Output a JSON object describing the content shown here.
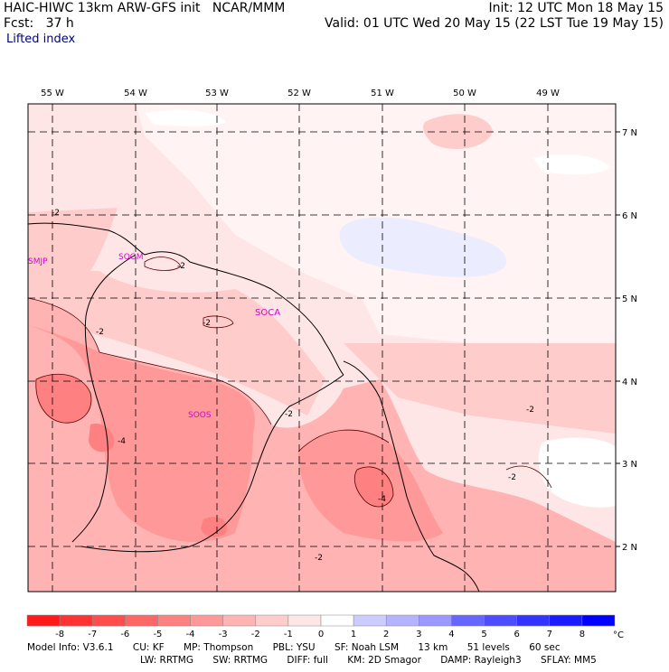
{
  "header": {
    "title": "HAIC-HIWC 13km ARW-GFS init",
    "org": "NCAR/MMM",
    "init": "Init: 12 UTC Mon 18 May 15",
    "fcst_label": "Fcst:",
    "fcst_value": "37 h",
    "valid": "Valid: 01 UTC Wed 20 May 15 (22 LST Tue 19 May 15)",
    "field": "Lifted index"
  },
  "map": {
    "lon_labels": [
      "55 W",
      "54 W",
      "53 W",
      "52 W",
      "51 W",
      "50 W",
      "49 W"
    ],
    "lat_labels": [
      "7 N",
      "6 N",
      "5 N",
      "4 N",
      "3 N",
      "2 N"
    ],
    "stations": [
      "SMJP",
      "SOGM",
      "SOCA",
      "SOOS"
    ],
    "contour_labels": [
      "-2",
      "-2",
      "-2",
      "-2",
      "-2",
      "-2",
      "-4",
      "-4",
      "-2",
      "-2"
    ]
  },
  "colorbar": {
    "ticks": [
      "-8",
      "-7",
      "-6",
      "-5",
      "-4",
      "-3",
      "-2",
      "-1",
      "0",
      "1",
      "2",
      "3",
      "4",
      "5",
      "6",
      "7",
      "8"
    ],
    "unit": "°C",
    "colors": [
      "#ff1a1a",
      "#ff3333",
      "#ff4d4d",
      "#ff6666",
      "#ff8080",
      "#ff9999",
      "#ffb3b3",
      "#ffcccc",
      "#ffe6e6",
      "#ffffff",
      "#ccccff",
      "#b3b3ff",
      "#9999ff",
      "#6666ff",
      "#4d4dff",
      "#3333ff",
      "#1a1aff",
      "#0000ff"
    ]
  },
  "footer": {
    "line1": [
      "Model Info: V3.6.1",
      "CU: KF",
      "MP: Thompson",
      "PBL: YSU",
      "SF: Noah LSM",
      "13 km",
      "51 levels",
      "60 sec"
    ],
    "line2": [
      "LW: RRTMG",
      "SW: RRTMG",
      "DIFF: full",
      "KM: 2D Smagor",
      "DAMP: Rayleigh3",
      "SFLAY: MM5"
    ]
  }
}
